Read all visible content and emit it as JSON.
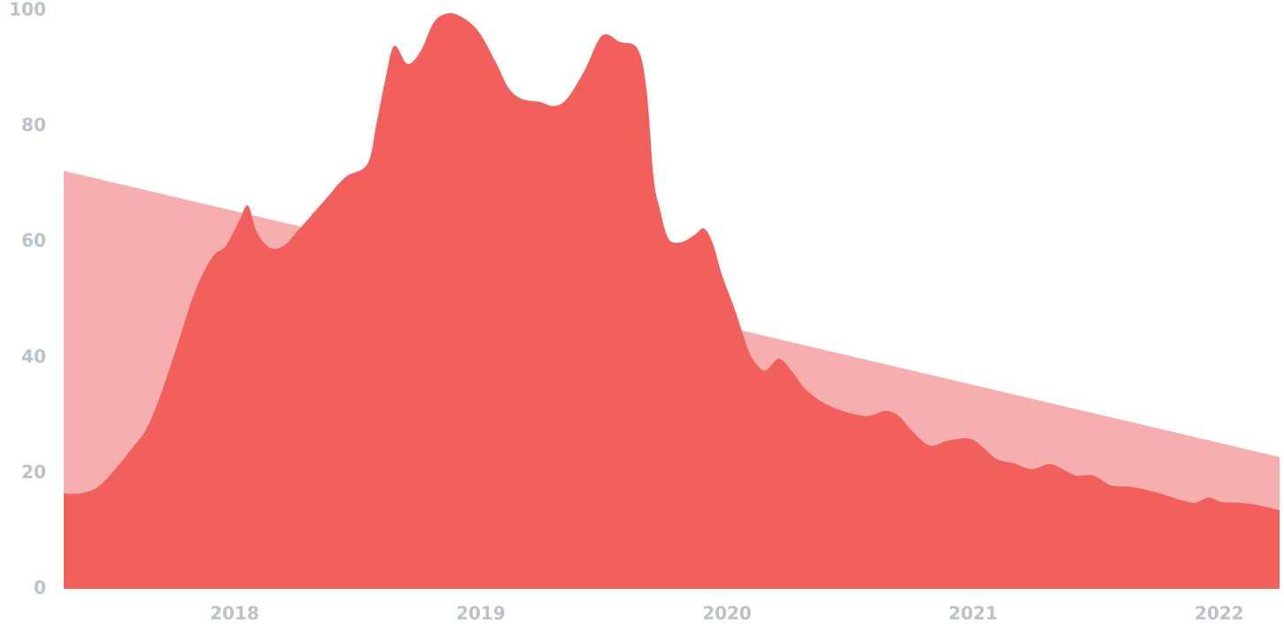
{
  "chart_data": {
    "type": "area",
    "xlim": [
      2017.306,
      2022.245
    ],
    "xticks": [
      2018,
      2019,
      2020,
      2021,
      2022
    ],
    "ylim": [
      0,
      100
    ],
    "yticks": [
      0,
      20,
      40,
      60,
      80,
      100
    ],
    "grid": false,
    "series": [
      {
        "color": "#f7aeae",
        "smooth": false,
        "x": [
          2017.306,
          2022.245
        ],
        "values": [
          72.3,
          22.8
        ]
      },
      {
        "color": "#f2605d",
        "smooth": true,
        "x": [
          2017.306,
          2017.371,
          2017.443,
          2017.515,
          2017.587,
          2017.641,
          2017.694,
          2017.766,
          2017.838,
          2017.91,
          2017.964,
          2018.018,
          2018.054,
          2018.09,
          2018.144,
          2018.198,
          2018.252,
          2018.306,
          2018.378,
          2018.45,
          2018.54,
          2018.576,
          2018.612,
          2018.648,
          2018.702,
          2018.756,
          2018.81,
          2018.864,
          2018.918,
          2018.989,
          2019.061,
          2019.115,
          2019.169,
          2019.241,
          2019.295,
          2019.349,
          2019.421,
          2019.493,
          2019.565,
          2019.637,
          2019.673,
          2019.702,
          2019.727,
          2019.763,
          2019.817,
          2019.871,
          2019.907,
          2019.943,
          2019.979,
          2020.033,
          2020.087,
          2020.123,
          2020.159,
          2020.212,
          2020.266,
          2020.32,
          2020.392,
          2020.482,
          2020.572,
          2020.644,
          2020.698,
          2020.752,
          2020.824,
          2020.896,
          2020.986,
          2021.04,
          2021.094,
          2021.166,
          2021.238,
          2021.31,
          2021.364,
          2021.418,
          2021.489,
          2021.561,
          2021.651,
          2021.759,
          2021.849,
          2021.903,
          2021.957,
          2022.011,
          2022.083,
          2022.155,
          2022.245
        ],
        "values": [
          16.5,
          16.5,
          17.6,
          20.7,
          24.5,
          27.6,
          32.9,
          42,
          51.3,
          57.4,
          59.3,
          63.6,
          66.3,
          61.7,
          59,
          59.3,
          61.7,
          64.3,
          67.8,
          71.2,
          73.5,
          80.4,
          88,
          93.9,
          90.8,
          93,
          98,
          99.5,
          99,
          96.5,
          91.1,
          86.5,
          84.7,
          84.2,
          83.5,
          84.7,
          89.6,
          95.7,
          94.6,
          93.4,
          86.5,
          71.2,
          65.8,
          60.5,
          60,
          61.3,
          62.3,
          59.7,
          54.4,
          48.2,
          41.3,
          38.7,
          37.8,
          39.8,
          37.5,
          34.5,
          32.2,
          30.6,
          29.9,
          30.8,
          29.9,
          27.3,
          24.8,
          25.6,
          26,
          24.5,
          22.5,
          21.7,
          20.7,
          21.6,
          20.7,
          19.6,
          19.6,
          17.9,
          17.6,
          16.5,
          15.3,
          14.9,
          15.8,
          15,
          14.9,
          14.5,
          13.6
        ]
      }
    ]
  }
}
